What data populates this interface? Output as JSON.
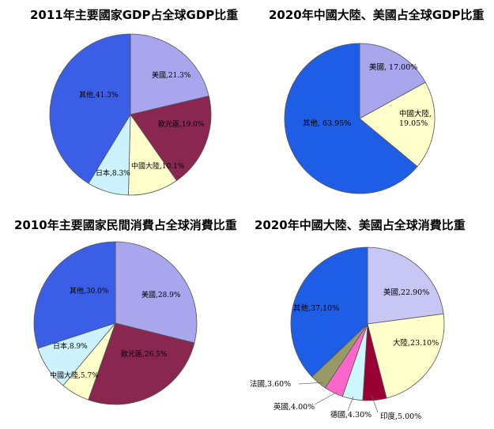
{
  "chart_data": [
    {
      "type": "pie",
      "title": "2011年主要國家GDP占全球GDP比重",
      "slices": [
        {
          "label": "美國,21.3%",
          "value": 21.3,
          "color": "#a9a6ee"
        },
        {
          "label": "歐元區,19.0%",
          "value": 19.0,
          "color": "#8a2750"
        },
        {
          "label": "中國大陸,10.1%",
          "value": 10.1,
          "color": "#ffffcc"
        },
        {
          "label": "日本,8.3%",
          "value": 8.3,
          "color": "#ccf3fd"
        },
        {
          "label": "其他,41.3%",
          "value": 41.3,
          "color": "#3a5fe6"
        }
      ]
    },
    {
      "type": "pie",
      "title": "2020年中國大陸、美國占全球GDP比重",
      "slices": [
        {
          "label": "美國, 17.00%",
          "value": 17.0,
          "color": "#a9a6ee"
        },
        {
          "label": "中國大陸, 19.05%",
          "label_lines": [
            "中國大陸,",
            "19.05%"
          ],
          "value": 19.05,
          "color": "#ffffcc"
        },
        {
          "label": "其他, 63.95%",
          "value": 63.95,
          "color": "#1e5ee6"
        }
      ]
    },
    {
      "type": "pie",
      "title": "2010年主要國家民間消費占全球消費比重",
      "slices": [
        {
          "label": "美國,28.9%",
          "value": 28.9,
          "color": "#a9a6ee"
        },
        {
          "label": "歐元區,26.5%",
          "value": 26.5,
          "color": "#8a2750"
        },
        {
          "label": "中國大陸,5.7%",
          "value": 5.7,
          "color": "#ffffcc"
        },
        {
          "label": "日本,8.9%",
          "value": 8.9,
          "color": "#ccf3fd"
        },
        {
          "label": "其他,30.0%",
          "value": 30.0,
          "color": "#3a5fe6"
        }
      ]
    },
    {
      "type": "pie",
      "title": "2020年中國大陸、美國占全球消費比重",
      "slices": [
        {
          "label": "美國,22.90%",
          "value": 22.9,
          "color": "#c8c6f5"
        },
        {
          "label": "大陸,23.10%",
          "value": 23.1,
          "color": "#ffffcc"
        },
        {
          "label": "印度,5.00%",
          "value": 5.0,
          "color": "#990033"
        },
        {
          "label": "德國,4.30%",
          "value": 4.3,
          "color": "#ccf7ff"
        },
        {
          "label": "英國,4.00%",
          "value": 4.0,
          "color": "#ff66cc"
        },
        {
          "label": "法國,3.60%",
          "value": 3.6,
          "color": "#999966"
        },
        {
          "label": "其他,37.10%",
          "value": 37.1,
          "color": "#1e5ee6"
        }
      ]
    }
  ]
}
